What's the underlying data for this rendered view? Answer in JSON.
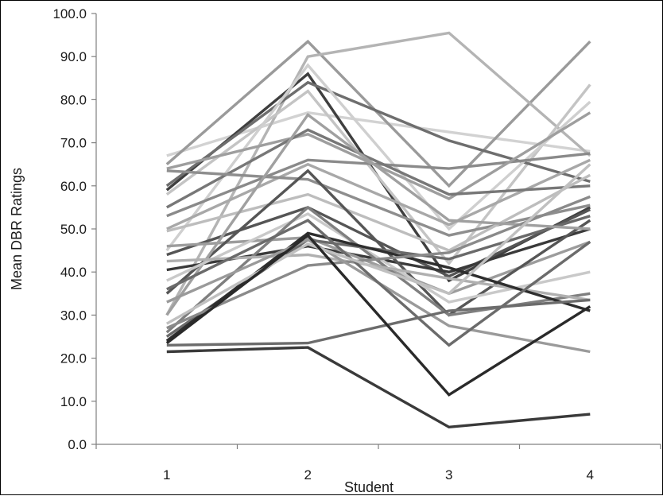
{
  "chart_data": {
    "type": "line",
    "title": "",
    "xlabel": "Student",
    "ylabel": "Mean DBR Ratings",
    "categories": [
      "1",
      "2",
      "3",
      "4"
    ],
    "ylim": [
      0,
      100
    ],
    "yticks": [
      "0.0",
      "10.0",
      "20.0",
      "30.0",
      "40.0",
      "50.0",
      "60.0",
      "70.0",
      "80.0",
      "90.0",
      "100.0"
    ],
    "grid": false,
    "legend": "none",
    "series": [
      {
        "values": [
          67,
          77,
          72.5,
          68
        ],
        "color": "#d2d2d2"
      },
      {
        "values": [
          65,
          93.5,
          60,
          93.5
        ],
        "color": "#9a9a9a"
      },
      {
        "values": [
          59,
          86,
          38,
          55
        ],
        "color": "#3f3f3f"
      },
      {
        "values": [
          30,
          90,
          95.5,
          67
        ],
        "color": "#b4b4b4"
      },
      {
        "values": [
          58,
          82,
          42,
          83.5
        ],
        "color": "#c4c4c4"
      },
      {
        "values": [
          60,
          84,
          70.5,
          61
        ],
        "color": "#6e6e6e"
      },
      {
        "values": [
          45,
          88,
          50,
          79.5
        ],
        "color": "#cfcfcf"
      },
      {
        "values": [
          53,
          66,
          64,
          67.5
        ],
        "color": "#8a8a8a"
      },
      {
        "values": [
          64,
          72,
          57,
          77
        ],
        "color": "#9e9e9e"
      },
      {
        "values": [
          50,
          65,
          51,
          66
        ],
        "color": "#a8a8a8"
      },
      {
        "values": [
          55,
          73,
          58,
          60
        ],
        "color": "#777777"
      },
      {
        "values": [
          63.5,
          61.5,
          48.5,
          55.5
        ],
        "color": "#8e8e8e"
      },
      {
        "values": [
          49.5,
          58,
          45,
          62.5
        ],
        "color": "#bdbdbd"
      },
      {
        "values": [
          44,
          55,
          39,
          54.5
        ],
        "color": "#555555"
      },
      {
        "values": [
          40.5,
          46,
          40,
          50
        ],
        "color": "#3a3a3a"
      },
      {
        "values": [
          46,
          48,
          35,
          47
        ],
        "color": "#9c9c9c"
      },
      {
        "values": [
          35,
          63.5,
          30,
          52
        ],
        "color": "#565656"
      },
      {
        "values": [
          25,
          47.5,
          43,
          53
        ],
        "color": "#6a6a6a"
      },
      {
        "values": [
          30,
          76.5,
          52,
          50
        ],
        "color": "#a0a0a0"
      },
      {
        "values": [
          38,
          53.5,
          33,
          40
        ],
        "color": "#c9c9c9"
      },
      {
        "values": [
          26,
          55,
          30,
          35
        ],
        "color": "#7f7f7f"
      },
      {
        "values": [
          42.5,
          44,
          38.5,
          33.5
        ],
        "color": "#b0b0b0"
      },
      {
        "values": [
          24,
          49,
          41,
          31
        ],
        "color": "#2e2e2e"
      },
      {
        "values": [
          27,
          41.5,
          44.5,
          57.5
        ],
        "color": "#8a8a8a"
      },
      {
        "values": [
          33,
          47.5,
          27.5,
          21.5
        ],
        "color": "#9a9a9a"
      },
      {
        "values": [
          36,
          52,
          23,
          47
        ],
        "color": "#6b6b6b"
      },
      {
        "values": [
          28,
          46.5,
          35,
          65
        ],
        "color": "#c0c0c0"
      },
      {
        "values": [
          23,
          23.5,
          31,
          33.5
        ],
        "color": "#6c6c6c"
      },
      {
        "values": [
          23.5,
          48.5,
          11.5,
          32
        ],
        "color": "#2a2a2a"
      },
      {
        "values": [
          21.5,
          22.5,
          4,
          7
        ],
        "color": "#3a3a3a"
      }
    ]
  }
}
